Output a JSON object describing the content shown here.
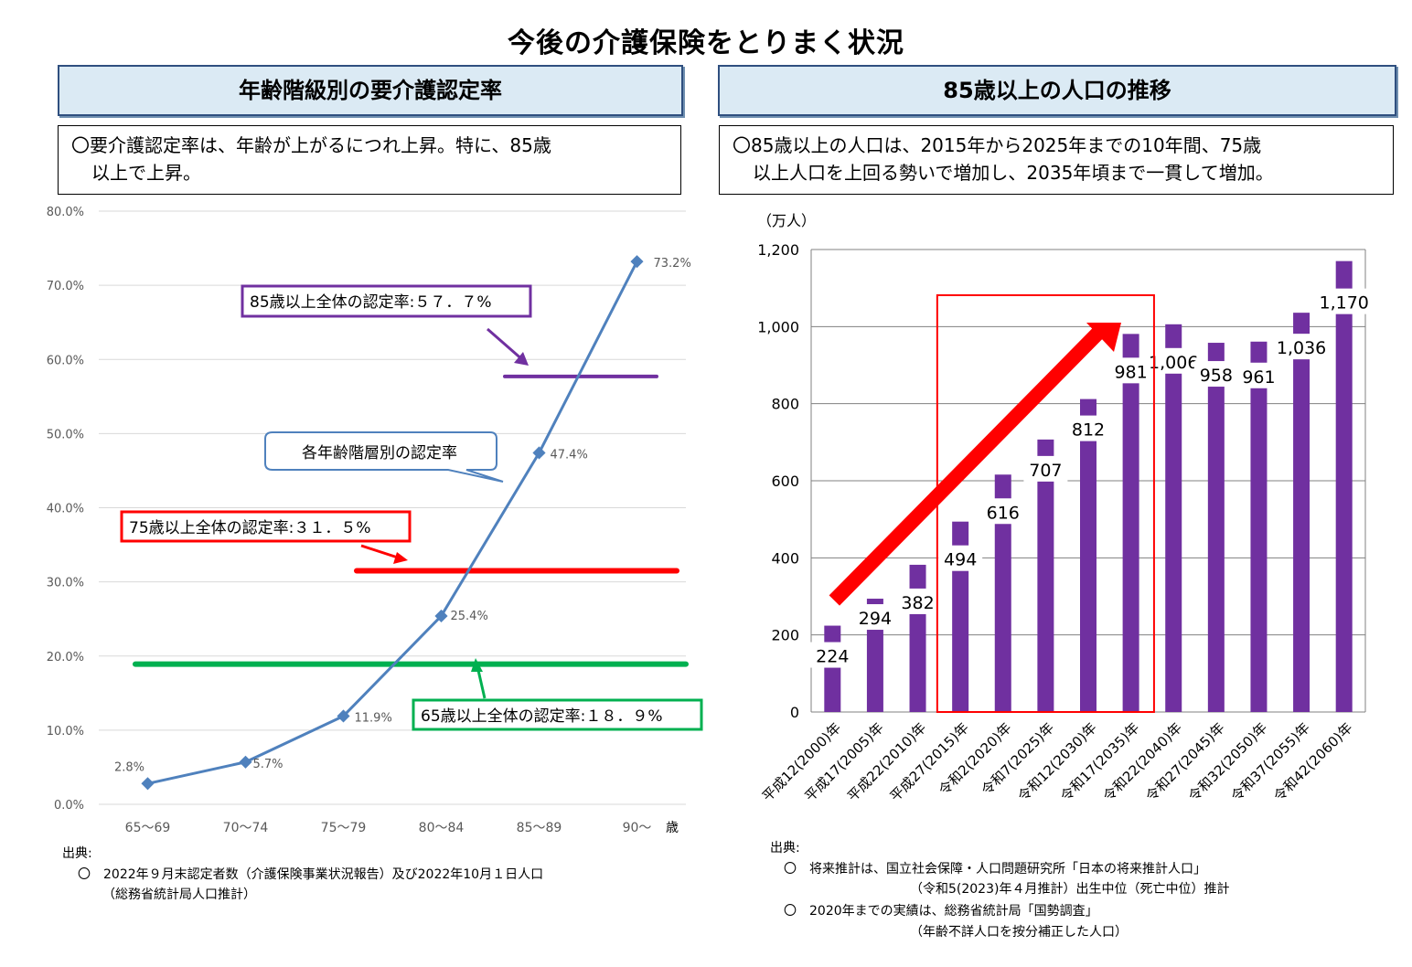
{
  "title": "今後の介護保険をとりまく状況",
  "left": {
    "header": "年齢階級別の要介護認定率",
    "note_line1": "〇要介護認定率は、年齢が上がるにつれ上昇。特に、85歳",
    "note_line2": "以上で上昇。",
    "source_label": "出典:",
    "source_line1": "〇　2022年９月末認定者数（介護保険事業状況報告）及び2022年10月１日人口",
    "source_line2": "（総務省統計局人口推計）"
  },
  "right": {
    "header": "85歳以上の人口の推移",
    "note_line1": "〇85歳以上の人口は、2015年から2025年までの10年間、75歳",
    "note_line2": "以上人口を上回る勢いで増加し、2035年頃まで一貫して増加。",
    "source_label": "出典:",
    "source_line1": "〇　将来推計は、国立社会保障・人口問題研究所「日本の将来推計人口」",
    "source_line2": "（令和5(2023)年４月推計）出生中位（死亡中位）推計",
    "source_line3": "〇　2020年までの実績は、総務省統計局「国勢調査」",
    "source_line4": "（年齢不詳人口を按分補正した人口）"
  },
  "chart_data": [
    {
      "type": "line",
      "categories": [
        "65〜69",
        "70〜74",
        "75〜79",
        "80〜84",
        "85〜89",
        "90〜"
      ],
      "x_unit": "歳",
      "values": [
        2.8,
        5.7,
        11.9,
        25.4,
        47.4,
        73.2
      ],
      "value_labels": [
        "2.8%",
        "5.7%",
        "11.9%",
        "25.4%",
        "47.4%",
        "73.2%"
      ],
      "yticks": [
        "0.0%",
        "10.0%",
        "20.0%",
        "30.0%",
        "40.0%",
        "50.0%",
        "60.0%",
        "70.0%",
        "80.0%"
      ],
      "ylim": [
        0,
        80
      ],
      "line_color": "#4f81bd",
      "series_callout": "各年齢階層別の認定率",
      "reference_lines": [
        {
          "label": "85歳以上全体の認定率:５７．７%",
          "value": 57.7,
          "color": "#7030a0"
        },
        {
          "label": "75歳以上全体の認定率:３１．５%",
          "value": 31.5,
          "color": "#ff0000"
        },
        {
          "label": "65歳以上全体の認定率:１８．９%",
          "value": 18.9,
          "color": "#00b050"
        }
      ],
      "grid": true
    },
    {
      "type": "bar",
      "unit_label": "（万人）",
      "categories": [
        "平成12(2000)年",
        "平成17(2005)年",
        "平成22(2010)年",
        "平成27(2015)年",
        "令和2(2020)年",
        "令和7(2025)年",
        "令和12(2030)年",
        "令和17(2035)年",
        "令和22(2040)年",
        "令和27(2045)年",
        "令和32(2050)年",
        "令和37(2055)年",
        "令和42(2060)年"
      ],
      "values": [
        224,
        294,
        382,
        494,
        616,
        707,
        812,
        981,
        1006,
        958,
        961,
        1036,
        1170
      ],
      "value_labels": [
        "224",
        "294",
        "382",
        "494",
        "616",
        "707",
        "812",
        "981",
        "1,006",
        "958",
        "961",
        "1,036",
        "1,170"
      ],
      "yticks": [
        "0",
        "200",
        "400",
        "600",
        "800",
        "1,000",
        "1,200"
      ],
      "ylim": [
        0,
        1200
      ],
      "bar_color": "#7030a0",
      "highlight_range": [
        "平成27(2015)年",
        "令和17(2035)年"
      ],
      "highlight_color": "#ff0000",
      "grid": true
    }
  ]
}
